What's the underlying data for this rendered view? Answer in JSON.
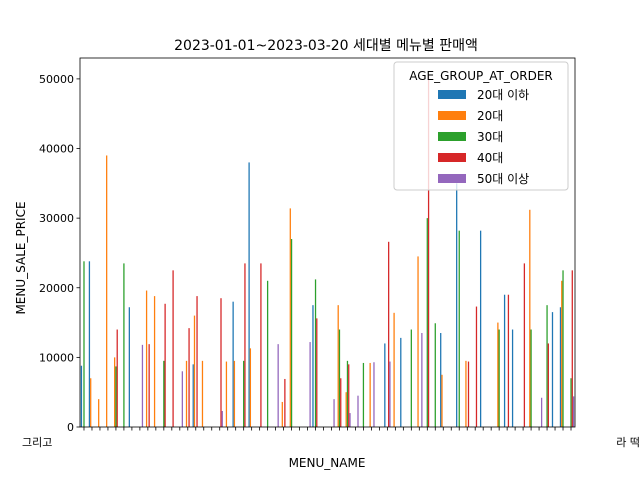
{
  "chart_data": {
    "type": "bar",
    "title": "2023-01-01~2023-03-20 세대별 메뉴별 판매액",
    "xlabel": "MENU_NAME",
    "ylabel": "MENU_SALE_PRICE",
    "ylim": [
      0,
      53000
    ],
    "yticks": [
      0,
      10000,
      20000,
      30000,
      40000,
      50000
    ],
    "grid": false,
    "legend": {
      "title": "AGE_GROUP_AT_ORDER",
      "placement": "upper-right"
    },
    "x_tick_text_left": "그리고",
    "x_tick_text_right": "라 떡",
    "series": [
      {
        "name": "20대 이하",
        "color": "#1f77b4",
        "values": [
          8800,
          23800,
          0,
          0,
          0,
          0,
          17200,
          0,
          0,
          0,
          0,
          0,
          0,
          0,
          9000,
          0,
          0,
          0,
          0,
          18000,
          0,
          38000,
          0,
          0,
          0,
          0,
          0,
          0,
          0,
          17500,
          0,
          0,
          0,
          0,
          0,
          0,
          0,
          0,
          12000,
          0,
          12800,
          0,
          0,
          0,
          0,
          13500,
          0,
          35000,
          0,
          0,
          28200,
          0,
          0,
          19000,
          14000,
          0,
          0,
          0,
          0,
          16500,
          17200,
          0
        ]
      },
      {
        "name": "20대",
        "color": "#ff7f0e",
        "values": [
          0,
          7000,
          4000,
          39000,
          10000,
          0,
          0,
          0,
          19600,
          18800,
          0,
          0,
          0,
          9500,
          16000,
          9500,
          0,
          0,
          9400,
          9500,
          0,
          11300,
          0,
          0,
          0,
          3600,
          31400,
          0,
          0,
          0,
          0,
          0,
          17500,
          5000,
          0,
          0,
          9200,
          0,
          0,
          16400,
          0,
          0,
          24500,
          0,
          0,
          7500,
          0,
          0,
          9500,
          0,
          0,
          0,
          15000,
          0,
          0,
          0,
          31200,
          0,
          0,
          0,
          21000,
          0
        ]
      },
      {
        "name": "30대",
        "color": "#2ca02c",
        "values": [
          23800,
          0,
          0,
          0,
          8700,
          23500,
          0,
          0,
          0,
          0,
          9500,
          0,
          0,
          0,
          0,
          0,
          0,
          0,
          0,
          0,
          9500,
          0,
          0,
          21000,
          0,
          0,
          27000,
          0,
          0,
          21200,
          0,
          0,
          14000,
          9500,
          0,
          9200,
          0,
          0,
          0,
          0,
          0,
          14000,
          0,
          30000,
          14900,
          0,
          0,
          28200,
          0,
          0,
          0,
          0,
          14000,
          0,
          0,
          0,
          14000,
          0,
          17500,
          0,
          22500,
          7000
        ]
      },
      {
        "name": "40대",
        "color": "#d62728",
        "values": [
          0,
          0,
          0,
          0,
          14000,
          0,
          0,
          0,
          11900,
          0,
          17700,
          22500,
          0,
          14200,
          18800,
          0,
          0,
          18500,
          0,
          0,
          23500,
          0,
          23500,
          0,
          0,
          6900,
          0,
          0,
          0,
          15600,
          0,
          0,
          7000,
          9000,
          0,
          0,
          0,
          0,
          26600,
          0,
          0,
          0,
          0,
          50600,
          0,
          0,
          0,
          0,
          9400,
          17300,
          0,
          0,
          0,
          19000,
          0,
          23500,
          0,
          0,
          12000,
          0,
          0,
          22500
        ]
      },
      {
        "name": "50대 이상",
        "color": "#9467bd",
        "values": [
          0,
          0,
          0,
          0,
          0,
          0,
          0,
          11800,
          0,
          0,
          0,
          0,
          8000,
          0,
          0,
          0,
          0,
          2300,
          0,
          0,
          0,
          0,
          0,
          0,
          11900,
          0,
          0,
          0,
          12200,
          0,
          0,
          4000,
          0,
          2000,
          4500,
          0,
          9300,
          0,
          9400,
          0,
          0,
          0,
          13500,
          0,
          0,
          0,
          0,
          0,
          0,
          0,
          0,
          0,
          0,
          0,
          0,
          0,
          0,
          4200,
          0,
          0,
          0,
          4400
        ]
      }
    ]
  }
}
